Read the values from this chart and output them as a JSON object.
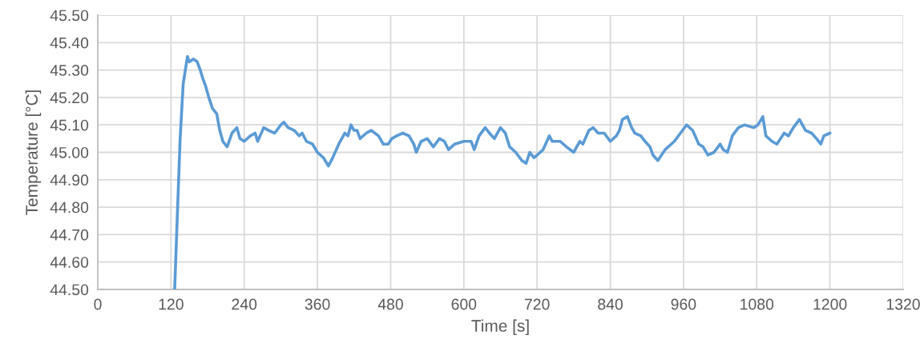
{
  "chart_data": {
    "type": "line",
    "xlabel": "Time [s]",
    "ylabel": "Temperature [°C]",
    "xlim": [
      0,
      1320
    ],
    "xticks": [
      0,
      120,
      240,
      360,
      480,
      600,
      720,
      840,
      960,
      1080,
      1200,
      1320
    ],
    "ylim": [
      44.5,
      45.5
    ],
    "yticks": [
      {
        "value": 44.5,
        "label": "44.50"
      },
      {
        "value": 44.6,
        "label": "44.60"
      },
      {
        "value": 44.7,
        "label": "44.70"
      },
      {
        "value": 44.8,
        "label": "44.80"
      },
      {
        "value": 44.9,
        "label": "44.90"
      },
      {
        "value": 45.0,
        "label": "45.00"
      },
      {
        "value": 45.1,
        "label": "45.10"
      },
      {
        "value": 45.2,
        "label": "45.20"
      },
      {
        "value": 45.3,
        "label": "45.30"
      },
      {
        "value": 45.4,
        "label": "45.40"
      },
      {
        "value": 45.5,
        "label": "45.50"
      }
    ],
    "grid": true,
    "legend": false,
    "marker": "none",
    "line_style": "solid",
    "series": [
      {
        "color": "#5b9bd5",
        "x": [
          126,
          135,
          140,
          147,
          150,
          157,
          163,
          168,
          172,
          177,
          182,
          188,
          195,
          200,
          205,
          212,
          220,
          228,
          233,
          240,
          250,
          258,
          262,
          272,
          280,
          290,
          300,
          305,
          312,
          322,
          330,
          335,
          342,
          352,
          360,
          370,
          378,
          385,
          395,
          405,
          410,
          415,
          420,
          425,
          430,
          440,
          448,
          460,
          468,
          476,
          482,
          490,
          500,
          510,
          518,
          522,
          530,
          540,
          550,
          560,
          568,
          575,
          585,
          600,
          612,
          617,
          625,
          635,
          642,
          650,
          660,
          668,
          675,
          685,
          695,
          702,
          708,
          715,
          730,
          740,
          745,
          758,
          768,
          780,
          785,
          790,
          795,
          805,
          812,
          820,
          830,
          840,
          850,
          855,
          860,
          868,
          875,
          880,
          890,
          897,
          905,
          910,
          918,
          930,
          945,
          955,
          965,
          975,
          985,
          992,
          1000,
          1010,
          1020,
          1025,
          1032,
          1040,
          1050,
          1060,
          1075,
          1082,
          1090,
          1095,
          1105,
          1113,
          1125,
          1132,
          1140,
          1150,
          1160,
          1170,
          1178,
          1185,
          1190,
          1200
        ],
        "values": [
          44.5,
          45.05,
          45.25,
          45.35,
          45.33,
          45.34,
          45.33,
          45.3,
          45.27,
          45.24,
          45.2,
          45.16,
          45.14,
          45.08,
          45.04,
          45.02,
          45.07,
          45.09,
          45.05,
          45.04,
          45.06,
          45.07,
          45.04,
          45.09,
          45.08,
          45.07,
          45.1,
          45.11,
          45.09,
          45.08,
          45.06,
          45.07,
          45.04,
          45.03,
          45.0,
          44.98,
          44.95,
          44.98,
          45.03,
          45.07,
          45.06,
          45.1,
          45.08,
          45.08,
          45.05,
          45.07,
          45.08,
          45.06,
          45.03,
          45.03,
          45.05,
          45.06,
          45.07,
          45.06,
          45.03,
          45.0,
          45.04,
          45.05,
          45.02,
          45.05,
          45.04,
          45.01,
          45.03,
          45.04,
          45.04,
          45.01,
          45.06,
          45.09,
          45.07,
          45.05,
          45.09,
          45.07,
          45.02,
          45.0,
          44.97,
          44.96,
          45.0,
          44.98,
          45.01,
          45.06,
          45.04,
          45.04,
          45.02,
          45.0,
          45.02,
          45.04,
          45.03,
          45.08,
          45.09,
          45.07,
          45.07,
          45.04,
          45.06,
          45.08,
          45.12,
          45.13,
          45.09,
          45.07,
          45.06,
          45.04,
          45.02,
          44.99,
          44.97,
          45.01,
          45.04,
          45.07,
          45.1,
          45.08,
          45.03,
          45.02,
          44.99,
          45.0,
          45.03,
          45.01,
          45.0,
          45.06,
          45.09,
          45.1,
          45.09,
          45.1,
          45.13,
          45.06,
          45.04,
          45.03,
          45.07,
          45.06,
          45.09,
          45.12,
          45.08,
          45.07,
          45.05,
          45.03,
          45.06,
          45.07
        ]
      }
    ]
  }
}
